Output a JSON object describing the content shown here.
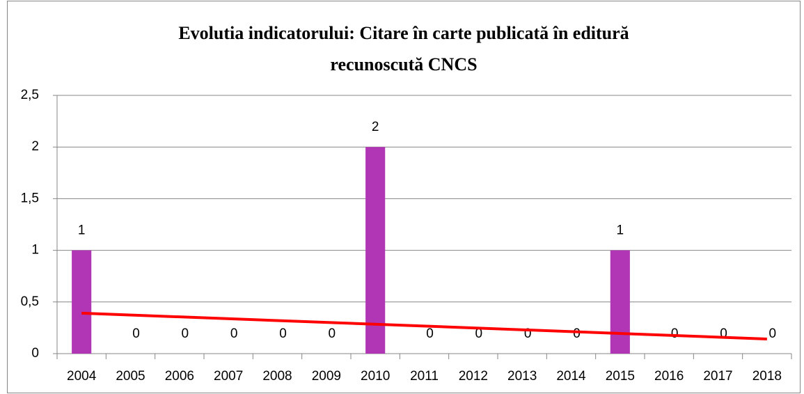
{
  "chart_data": {
    "type": "bar",
    "title": [
      "Evolutia indicatorului: Citare în carte publicată în editură",
      "recunoscută CNCS"
    ],
    "categories": [
      "2004",
      "2005",
      "2006",
      "2007",
      "2008",
      "2009",
      "2010",
      "2011",
      "2012",
      "2013",
      "2014",
      "2015",
      "2016",
      "2017",
      "2018"
    ],
    "values": [
      1,
      0,
      0,
      0,
      0,
      0,
      2,
      0,
      0,
      0,
      0,
      1,
      0,
      0,
      0
    ],
    "color": "#b036b5",
    "ylim": [
      0,
      2.5
    ],
    "yticks": [
      0,
      {
        "value": 0.5,
        "label": "0,5"
      },
      1,
      {
        "value": 1.5,
        "label": "1,5"
      },
      2,
      {
        "value": 2.5,
        "label": "2,5"
      }
    ],
    "grid": true,
    "trendline": "linear",
    "trendline_color": "#ff0000"
  }
}
